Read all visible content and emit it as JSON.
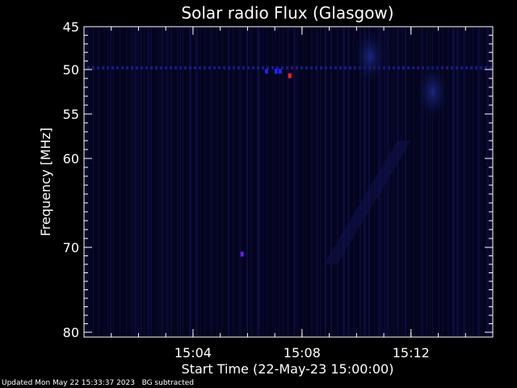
{
  "footer": {
    "updated": "Updated Mon May 22 15:33:37 2023",
    "note": "BG subtracted"
  },
  "chart_data": {
    "type": "heatmap",
    "title": "Solar radio Flux (Glasgow)",
    "xlabel": "Start Time (22-May-23 15:00:00)",
    "ylabel": "Frequency [MHz]",
    "xlim_minutes": [
      0,
      15
    ],
    "x_ticks": [
      {
        "minute": 4,
        "label": "15:04"
      },
      {
        "minute": 8,
        "label": "15:08"
      },
      {
        "minute": 12,
        "label": "15:12"
      }
    ],
    "ylim": [
      45,
      80
    ],
    "y_ticks": [
      45,
      50,
      55,
      60,
      70,
      80
    ],
    "y_axis_reversed": true,
    "y_axis_nonlinear": true,
    "colors": {
      "background": "#000000",
      "plot_bg": "#04041e",
      "streak": "#10104a",
      "axis": "#ffffff",
      "rfi_band": "#1a1a80",
      "burst_blue": "#2020ff",
      "burst_red": "#ff2020",
      "burst_purple": "#6020ff"
    },
    "features": [
      {
        "kind": "rfi_band",
        "freq": 49.8
      },
      {
        "kind": "burst",
        "color": "burst_blue",
        "minute": 6.7,
        "freq": 50.2
      },
      {
        "kind": "burst",
        "color": "burst_blue",
        "minute": 7.05,
        "freq": 50.2
      },
      {
        "kind": "burst",
        "color": "burst_blue",
        "minute": 7.2,
        "freq": 50.2
      },
      {
        "kind": "burst",
        "color": "burst_red",
        "minute": 7.55,
        "freq": 50.7
      },
      {
        "kind": "burst",
        "color": "burst_purple",
        "minute": 5.8,
        "freq": 70.8
      },
      {
        "kind": "glow",
        "minute": 12.8,
        "freq": 52.5
      },
      {
        "kind": "glow",
        "minute": 10.5,
        "freq": 48.5
      }
    ]
  }
}
